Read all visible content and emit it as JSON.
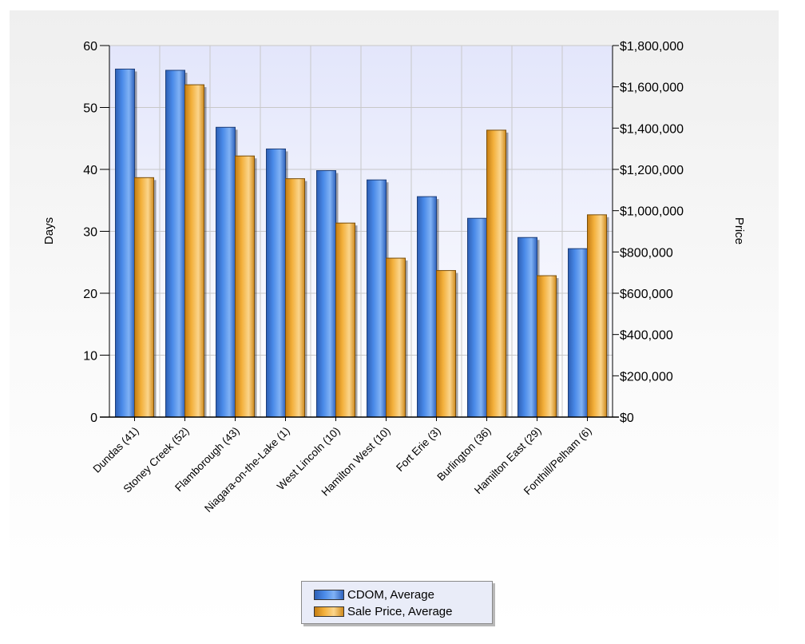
{
  "chart_data": {
    "type": "bar",
    "categories": [
      "Dundas (41)",
      "Stoney Creek (52)",
      "Flamborough (43)",
      "Niagara-on-the-Lake (1)",
      "West Lincoln (10)",
      "Hamilton West (10)",
      "Fort Erie (3)",
      "Burlington (36)",
      "Hamilton East (29)",
      "Fonthill/Pelham (6)"
    ],
    "series": [
      {
        "name": "CDOM, Average",
        "axis": "left",
        "color": "#4a8ae8",
        "values": [
          56.2,
          56.0,
          46.8,
          43.3,
          39.8,
          38.3,
          35.6,
          32.1,
          29.0,
          27.2
        ]
      },
      {
        "name": "Sale Price, Average",
        "axis": "right",
        "color": "#f3b03c",
        "values": [
          1160000,
          1610000,
          1265000,
          1155000,
          940000,
          770000,
          710000,
          1390000,
          685000,
          980000
        ]
      }
    ],
    "ylabel": "Days",
    "y2label": "Price",
    "ylim": [
      0,
      60
    ],
    "y2lim": [
      0,
      1800000
    ],
    "yticks": [
      "0",
      "10",
      "20",
      "30",
      "40",
      "50",
      "60"
    ],
    "y2ticks": [
      "$0",
      "$200,000",
      "$400,000",
      "$600,000",
      "$800,000",
      "$1,000,000",
      "$1,200,000",
      "$1,400,000",
      "$1,600,000",
      "$1,800,000"
    ],
    "grid": true,
    "legend_position": "bottom-center",
    "colors": {
      "plot_top": "#e3e6fb",
      "plot_bottom": "#ffffff",
      "grid": "#c8c8c8"
    }
  }
}
